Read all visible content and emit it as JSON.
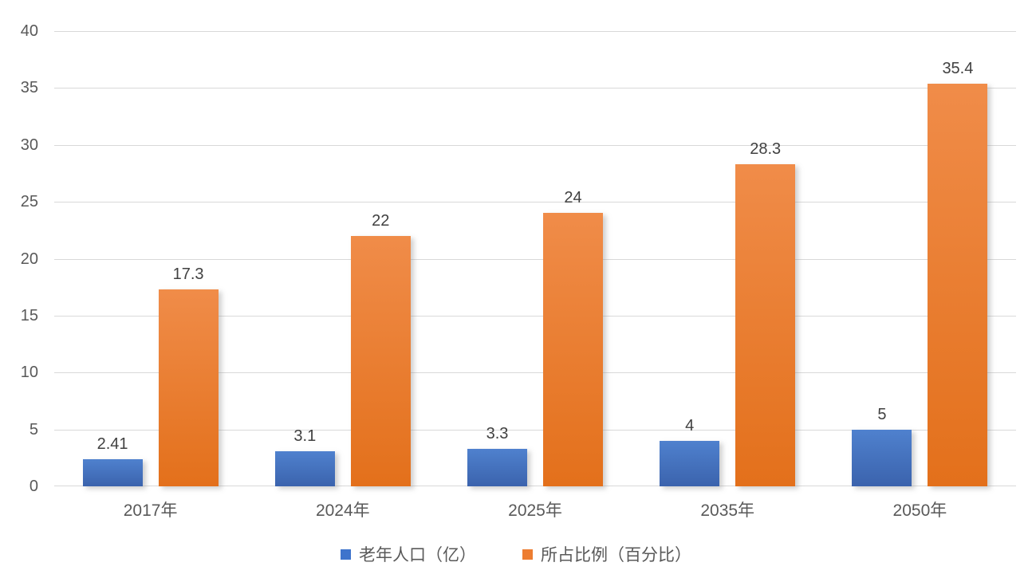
{
  "chart_data": {
    "type": "bar",
    "title": "",
    "xlabel": "",
    "ylabel": "",
    "categories": [
      "2017年",
      "2024年",
      "2025年",
      "2035年",
      "2050年"
    ],
    "series": [
      {
        "name": "老年人口（亿）",
        "values": [
          2.41,
          3.1,
          3.3,
          4,
          5
        ],
        "labels": [
          "2.41",
          "3.1",
          "3.3",
          "4",
          "5"
        ],
        "gradient_top": "#4f81ce",
        "gradient_bottom": "#3b63ad",
        "legend_color": "#3e74cc"
      },
      {
        "name": "所占比例（百分比）",
        "values": [
          17.3,
          22,
          24,
          28.3,
          35.4
        ],
        "labels": [
          "17.3",
          "22",
          "24",
          "28.3",
          "35.4"
        ],
        "gradient_top": "#f08c49",
        "gradient_bottom": "#e3701b",
        "legend_color": "#ed7d31"
      }
    ],
    "ylim": [
      0,
      40
    ],
    "yticks": [
      "0",
      "5",
      "10",
      "15",
      "20",
      "25",
      "30",
      "35",
      "40"
    ],
    "grid": true,
    "legend_position": "bottom",
    "colors": {
      "grid": "#d9d9d9",
      "axis_text": "#595959",
      "data_label_text": "#404040",
      "background": "#ffffff"
    }
  }
}
